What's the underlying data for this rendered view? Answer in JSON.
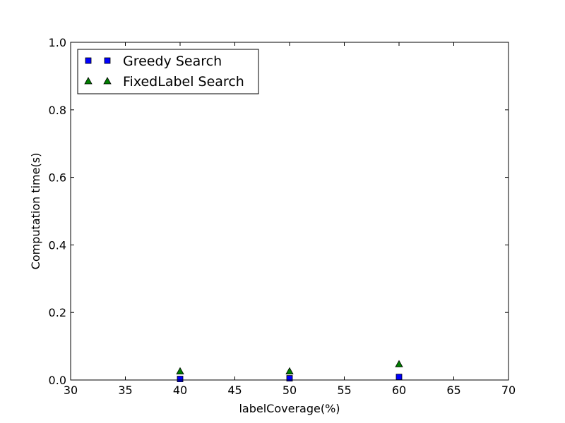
{
  "chart_data": {
    "type": "scatter",
    "title": "",
    "xlabel": "labelCoverage(%)",
    "ylabel": "Computation time(s)",
    "xlim": [
      30,
      70
    ],
    "ylim": [
      0.0,
      1.0
    ],
    "x_ticks": [
      "30",
      "35",
      "40",
      "45",
      "50",
      "55",
      "60",
      "65",
      "70"
    ],
    "y_ticks": [
      "0.0",
      "0.2",
      "0.4",
      "0.6",
      "0.8",
      "1.0"
    ],
    "grid": false,
    "legend_position": "upper-left",
    "series": [
      {
        "name": "Greedy Search",
        "marker": "square",
        "color": "#0000ff",
        "x": [
          40,
          50,
          60
        ],
        "y": [
          0.003,
          0.005,
          0.009
        ]
      },
      {
        "name": "FixedLabel Search",
        "marker": "triangle",
        "color": "#007f00",
        "x": [
          40,
          50,
          60
        ],
        "y": [
          0.026,
          0.026,
          0.047
        ]
      }
    ]
  }
}
